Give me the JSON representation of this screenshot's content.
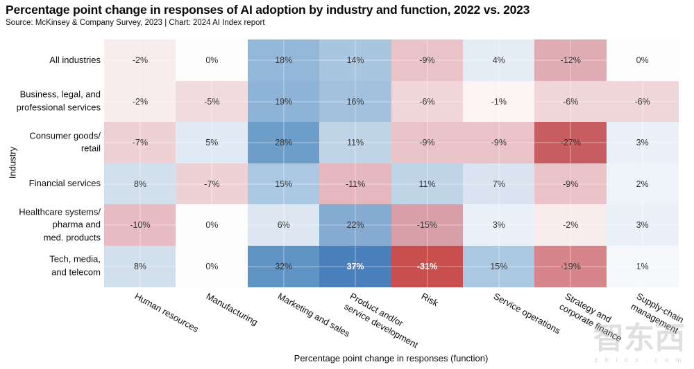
{
  "title": "Percentage point change in responses of AI adoption by industry and function, 2022 vs. 2023",
  "source": "Source: McKinsey & Company Survey, 2023 | Chart: 2024 AI Index report",
  "watermark": {
    "text": "智东西",
    "subtext": "z h i d x . c o m"
  },
  "chart_data": {
    "type": "heatmap",
    "title": "Percentage point change in responses of AI adoption by industry and function, 2022 vs. 2023",
    "xlabel": "Percentage point change in responses (function)",
    "ylabel": "Industry",
    "value_format": "percent",
    "value_range": [
      -31,
      37
    ],
    "legend": "none",
    "grid": "faint white lines at cell centers",
    "columns": [
      "Human resources",
      "Manufacturing",
      "Marketing and sales",
      "Product and/or\nservice development",
      "Risk",
      "Service operations",
      "Strategy and\ncorporate finance",
      "Supply-chain\nmanagement"
    ],
    "rows": [
      "All industries",
      "Business, legal, and\nprofessional services",
      "Consumer goods/\nretail",
      "Financial services",
      "Healthcare systems/\npharma and\nmed. products",
      "Tech, media,\nand telecom"
    ],
    "values": [
      [
        -2,
        0,
        18,
        14,
        -9,
        4,
        -12,
        0
      ],
      [
        -2,
        -5,
        19,
        16,
        -6,
        -1,
        -6,
        -6
      ],
      [
        -7,
        5,
        28,
        11,
        -9,
        -9,
        -27,
        3
      ],
      [
        8,
        -7,
        15,
        -11,
        11,
        7,
        -9,
        2
      ],
      [
        -10,
        0,
        6,
        22,
        -15,
        3,
        -2,
        3
      ],
      [
        8,
        0,
        32,
        37,
        -31,
        15,
        -19,
        1
      ]
    ],
    "cell_colors": [
      [
        "#f8eced",
        "#fdfdfe",
        "#92b7d8",
        "#a9c6e1",
        "#e9c3c8",
        "#e4edf6",
        "#dfacb3",
        "#fdfdfe"
      ],
      [
        "#f8eced",
        "#f2dbde",
        "#8db3d6",
        "#a2c1de",
        "#f0d6d9",
        "#fbf3f4",
        "#f0d6d9",
        "#f0d6d9"
      ],
      [
        "#eed1d5",
        "#dfeaf4",
        "#6d9dc9",
        "#c0d4e8",
        "#e9c3c8",
        "#e9c3c8",
        "#c75d60",
        "#e9f0f7"
      ],
      [
        "#d2e0ee",
        "#eed1d5",
        "#abc8e2",
        "#e4b8be",
        "#c0d4e8",
        "#d9e4f0",
        "#e9c3c8",
        "#eff4f9"
      ],
      [
        "#e6bcc2",
        "#fdfdfe",
        "#dde7f1",
        "#85abd2",
        "#d99fa8",
        "#e9f0f7",
        "#f8eced",
        "#e9f0f7"
      ],
      [
        "#d2e0ee",
        "#fdfdfe",
        "#6094c4",
        "#4a80bb",
        "#c94f4f",
        "#abc8e2",
        "#d7848b",
        "#f6f8fb"
      ]
    ],
    "white_text_cells": [
      [
        5,
        3
      ],
      [
        5,
        4
      ]
    ],
    "colors": {
      "negative_max": "#c94f4f",
      "positive_max": "#4a80bb",
      "mid": "#ffffff",
      "cell_text": "#333333",
      "cell_text_inverse": "#ffffff",
      "label_text": "#0e0e0e"
    }
  }
}
